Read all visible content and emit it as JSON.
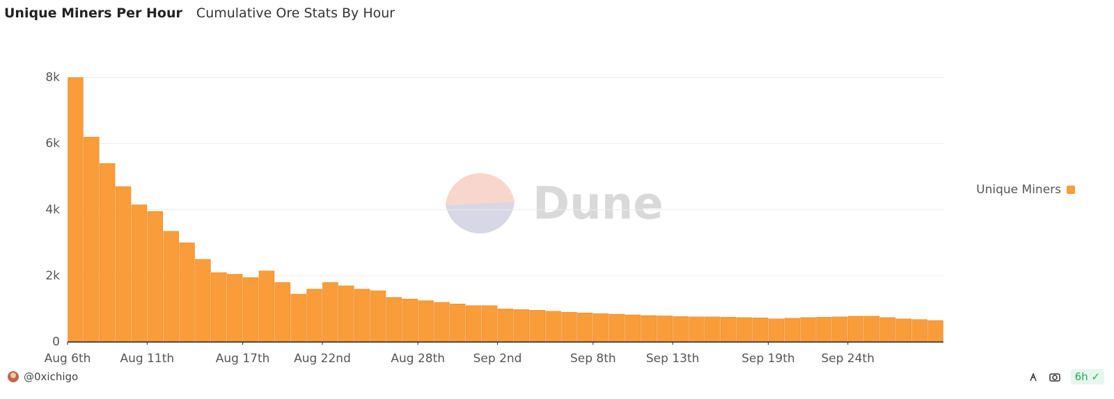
{
  "chart_data": {
    "type": "bar",
    "title": "Unique Miners Per Hour",
    "subtitle": "Cumulative Ore Stats By Hour",
    "watermark": "Dune",
    "author": "@0xichigo",
    "refresh": "6h",
    "categories": [
      "Aug 6",
      "Aug 7",
      "Aug 8",
      "Aug 9",
      "Aug 10",
      "Aug 11",
      "Aug 12",
      "Aug 13",
      "Aug 14",
      "Aug 15",
      "Aug 16",
      "Aug 17",
      "Aug 18",
      "Aug 19",
      "Aug 20",
      "Aug 21",
      "Aug 22",
      "Aug 23",
      "Aug 24",
      "Aug 25",
      "Aug 26",
      "Aug 27",
      "Aug 28",
      "Aug 29",
      "Aug 30",
      "Aug 31",
      "Sep 1",
      "Sep 2",
      "Sep 3",
      "Sep 4",
      "Sep 5",
      "Sep 6",
      "Sep 7",
      "Sep 8",
      "Sep 9",
      "Sep 10",
      "Sep 11",
      "Sep 12",
      "Sep 13",
      "Sep 14",
      "Sep 15",
      "Sep 16",
      "Sep 17",
      "Sep 18",
      "Sep 19",
      "Sep 20",
      "Sep 21",
      "Sep 22",
      "Sep 23",
      "Sep 24",
      "Sep 25",
      "Sep 26",
      "Sep 27",
      "Sep 28",
      "Sep 29"
    ],
    "series": [
      {
        "name": "Unique Miners",
        "color": "#f99c3a",
        "values": [
          8000,
          6200,
          5400,
          4700,
          4150,
          3950,
          3350,
          3000,
          2500,
          2100,
          2050,
          1950,
          2150,
          1800,
          1450,
          1600,
          1800,
          1700,
          1600,
          1550,
          1350,
          1300,
          1250,
          1200,
          1150,
          1100,
          1100,
          1000,
          980,
          960,
          930,
          900,
          880,
          860,
          840,
          820,
          800,
          790,
          770,
          760,
          760,
          750,
          740,
          730,
          700,
          720,
          740,
          750,
          760,
          780,
          780,
          740,
          700,
          680,
          650
        ]
      }
    ],
    "ylim": [
      0,
      9000
    ],
    "yticks": [
      0,
      {
        "value": 2000,
        "label": "2k"
      },
      {
        "value": 4000,
        "label": "4k"
      },
      {
        "value": 6000,
        "label": "6k"
      },
      {
        "value": 8000,
        "label": "8k"
      }
    ],
    "xticks": [
      {
        "value": "Aug 6",
        "label": "Aug 6th"
      },
      {
        "value": "Aug 11",
        "label": "Aug 11th"
      },
      {
        "value": "Aug 17",
        "label": "Aug 17th"
      },
      {
        "value": "Aug 22",
        "label": "Aug 22nd"
      },
      {
        "value": "Aug 28",
        "label": "Aug 28th"
      },
      {
        "value": "Sep 2",
        "label": "Sep 2nd"
      },
      {
        "value": "Sep 8",
        "label": "Sep 8th"
      },
      {
        "value": "Sep 13",
        "label": "Sep 13th"
      },
      {
        "value": "Sep 19",
        "label": "Sep 19th"
      },
      {
        "value": "Sep 24",
        "label": "Sep 24th"
      }
    ],
    "grid": true,
    "legend": "right"
  }
}
